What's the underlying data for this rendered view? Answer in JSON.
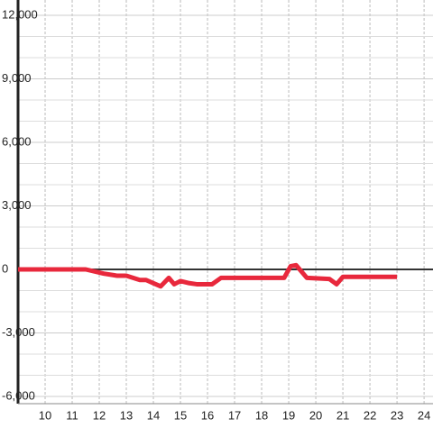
{
  "chart_data": {
    "type": "line",
    "xlim": [
      9,
      24.33
    ],
    "xticks": [
      10,
      11,
      12,
      13,
      14,
      15,
      16,
      17,
      18,
      19,
      20,
      21,
      22,
      23,
      24
    ],
    "ylim": [
      -6000,
      12000
    ],
    "yticks": [
      {
        "value": -6000,
        "label": "-6,000"
      },
      {
        "value": -3000,
        "label": "-3,000"
      },
      0,
      {
        "value": 3000,
        "label": "3,000"
      },
      {
        "value": 6000,
        "label": "6,000"
      },
      {
        "value": 9000,
        "label": "9,000"
      },
      {
        "value": 12000,
        "label": "12,000"
      }
    ],
    "grid": true,
    "series": [
      {
        "color": "#e8283c",
        "x": [
          9,
          11.5,
          12.17,
          12.67,
          13.0,
          13.5,
          13.73,
          14.0,
          14.27,
          14.57,
          14.77,
          15.0,
          15.33,
          15.6,
          16.17,
          16.5,
          17.33,
          18.83,
          19.07,
          19.27,
          19.67,
          20.5,
          20.77,
          21.0,
          21.67,
          23.0
        ],
        "values": [
          0,
          0,
          -200,
          -300,
          -300,
          -500,
          -500,
          -650,
          -800,
          -400,
          -700,
          -550,
          -650,
          -700,
          -700,
          -400,
          -400,
          -400,
          150,
          200,
          -400,
          -450,
          -700,
          -350,
          -350,
          -350
        ]
      }
    ]
  }
}
